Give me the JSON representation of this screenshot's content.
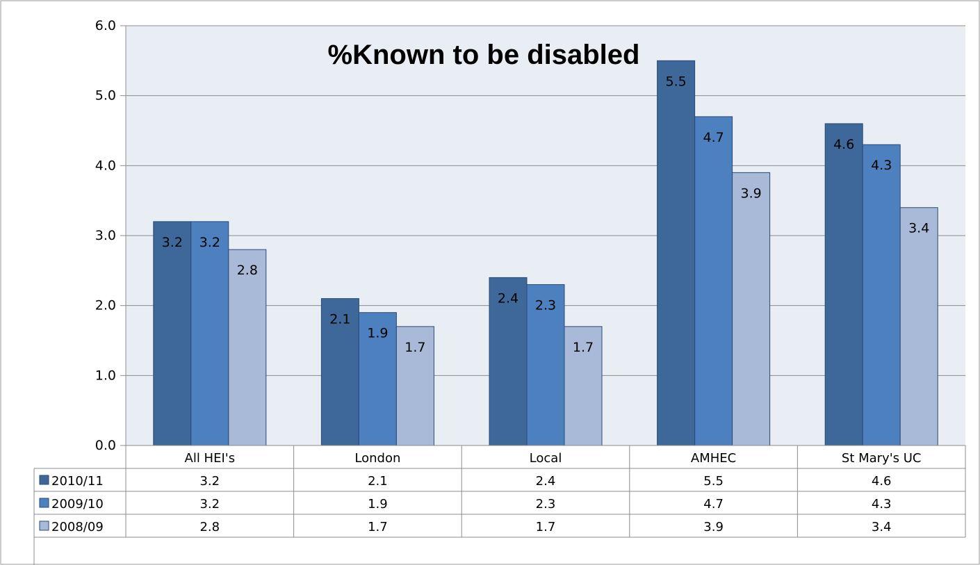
{
  "chart_data": {
    "type": "bar",
    "title": "%Known to be disabled",
    "categories": [
      "All HEI's",
      "London",
      "Local",
      "AMHEC",
      "St Mary's UC"
    ],
    "series": [
      {
        "name": "2010/11",
        "values": [
          3.2,
          2.1,
          2.4,
          5.5,
          4.6
        ],
        "value_labels": [
          "3.2",
          "2.1",
          "2.4",
          "5.5",
          "4.6"
        ],
        "color": "#3d6899"
      },
      {
        "name": "2009/10",
        "values": [
          3.2,
          1.9,
          2.3,
          4.7,
          4.3
        ],
        "value_labels": [
          "3.2",
          "1.9",
          "2.3",
          "4.7",
          "4.3"
        ],
        "color": "#4d80be"
      },
      {
        "name": "2008/09",
        "values": [
          2.8,
          1.7,
          1.7,
          3.9,
          3.4
        ],
        "value_labels": [
          "2.8",
          "1.7",
          "1.7",
          "3.9",
          "3.4"
        ],
        "color": "#a9bad8"
      }
    ],
    "ylim": [
      0,
      6
    ],
    "yticks": [
      "0.0",
      "1.0",
      "2.0",
      "3.0",
      "4.0",
      "5.0",
      "6.0"
    ],
    "grid": true,
    "legend": "data-table-left",
    "plot_background": "#e9edf4",
    "gridline_color": "#8c8c8c"
  }
}
